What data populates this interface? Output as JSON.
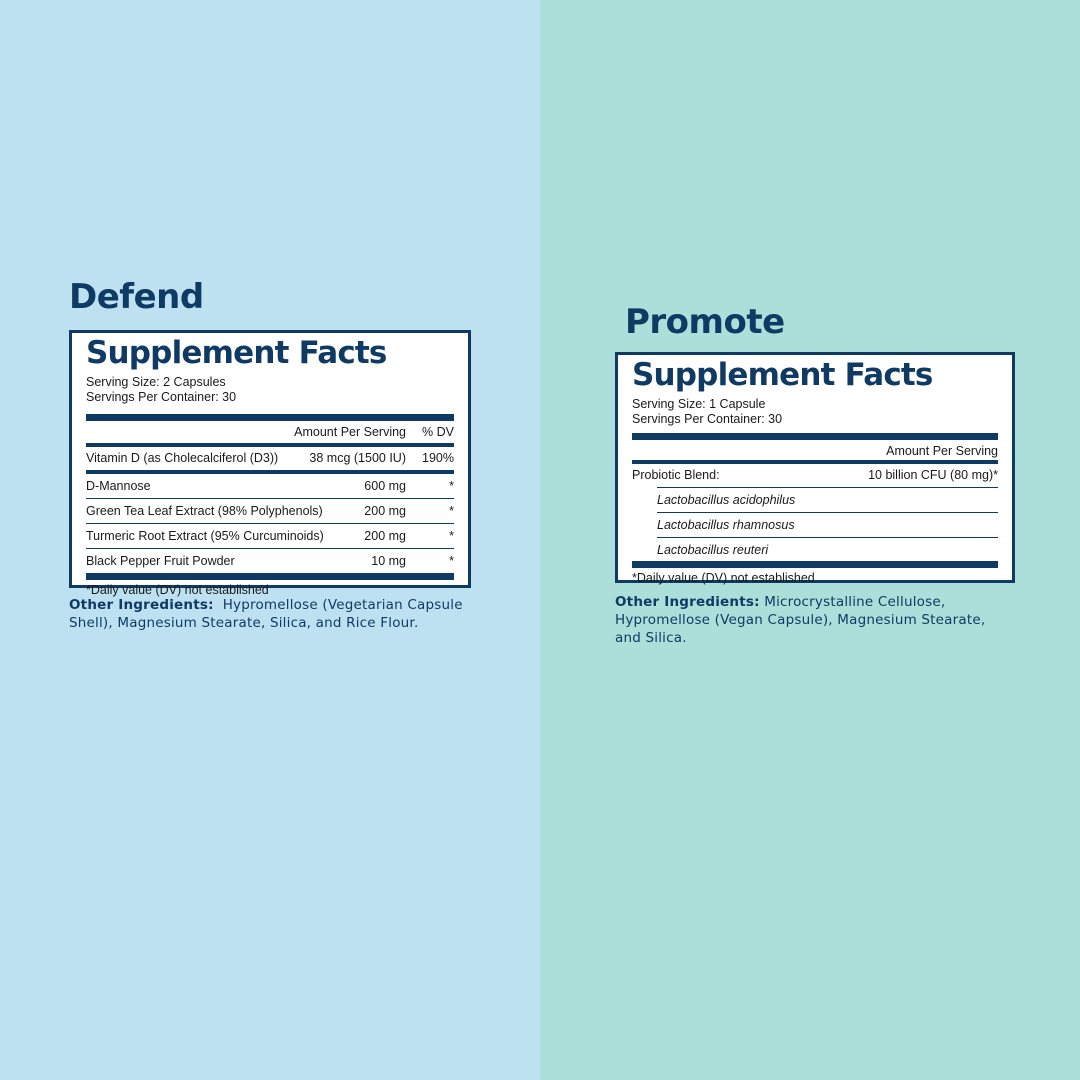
{
  "defend": {
    "title": "Defend",
    "facts_heading": "Supplement Facts",
    "serving_size": "Serving Size: 2 Capsules",
    "servings_per_container": "Servings Per Container: 30",
    "header_amount": "Amount Per Serving",
    "header_dv": "% DV",
    "rows": [
      {
        "name": "Vitamin D (as Cholecalciferol (D3))",
        "amount": "38 mcg (1500 IU)",
        "dv": "190%"
      },
      {
        "name": "D-Mannose",
        "amount": "600 mg",
        "dv": "*"
      },
      {
        "name": "Green Tea Leaf Extract (98% Polyphenols)",
        "amount": "200 mg",
        "dv": "*"
      },
      {
        "name": "Turmeric Root Extract (95% Curcuminoids)",
        "amount": "200 mg",
        "dv": "*"
      },
      {
        "name": "Black Pepper Fruit Powder",
        "amount": "10 mg",
        "dv": "*"
      }
    ],
    "footnote": "*Daily value (DV) not established",
    "other_label": "Other Ingredients:",
    "other_text": "Hypromellose (Vegetarian Capsule Shell), Magnesium Stearate, Silica, and Rice Flour."
  },
  "promote": {
    "title": "Promote",
    "facts_heading": "Supplement Facts",
    "serving_size": "Serving Size: 1 Capsule",
    "servings_per_container": "Servings Per Container: 30",
    "header_amount": "Amount Per Serving",
    "blend_name": "Probiotic Blend:",
    "blend_amount": "10 billion CFU (80 mg)*",
    "strains": [
      "Lactobacillus acidophilus",
      "Lactobacillus rhamnosus",
      "Lactobacillus reuteri"
    ],
    "footnote": "*Daily value (DV) not established",
    "other_label": "Other Ingredients:",
    "other_text": "Microcrystalline Cellulose, Hypromellose (Vegan Capsule), Magnesium Stearate, and Silica."
  },
  "colors": {
    "left_background": "#bee1f2",
    "right_background": "#addfda",
    "navy": "#0f3a64"
  }
}
